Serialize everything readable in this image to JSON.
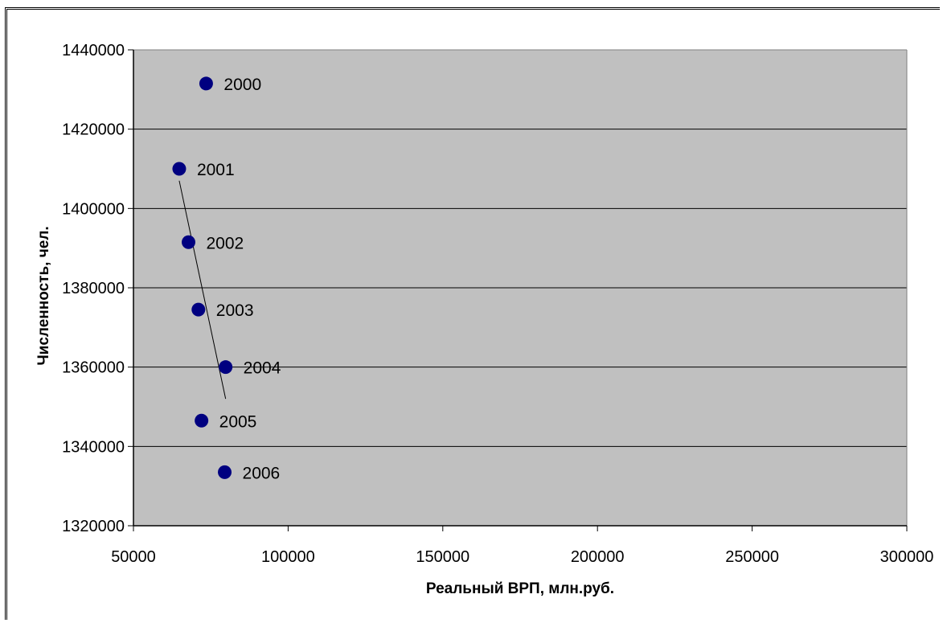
{
  "chart_data": {
    "type": "scatter",
    "xlabel": "Реальный ВРП, млн.руб.",
    "ylabel": "Численность, чел.",
    "xlim": [
      50000,
      300000
    ],
    "ylim": [
      1320000,
      1440000
    ],
    "x_ticks": [
      "50000",
      "100000",
      "150000",
      "200000",
      "250000",
      "300000"
    ],
    "y_ticks": [
      "1320000",
      "1340000",
      "1360000",
      "1380000",
      "1400000",
      "1420000",
      "1440000"
    ],
    "grid": "horizontal",
    "plot_background": "#c0c0c0",
    "marker_color": "#000080",
    "series": [
      {
        "points": [
          {
            "label": "2000",
            "x": 73500,
            "y": 1431500
          },
          {
            "label": "2001",
            "x": 64800,
            "y": 1410000
          },
          {
            "label": "2002",
            "x": 67800,
            "y": 1391500
          },
          {
            "label": "2003",
            "x": 71000,
            "y": 1374500
          },
          {
            "label": "2004",
            "x": 79800,
            "y": 1360000
          },
          {
            "label": "2005",
            "x": 72000,
            "y": 1346500
          },
          {
            "label": "2006",
            "x": 79500,
            "y": 1333500
          }
        ]
      }
    ],
    "trendline": {
      "from": {
        "x": 64800,
        "y": 1407000
      },
      "to": {
        "x": 79800,
        "y": 1352000
      }
    }
  }
}
